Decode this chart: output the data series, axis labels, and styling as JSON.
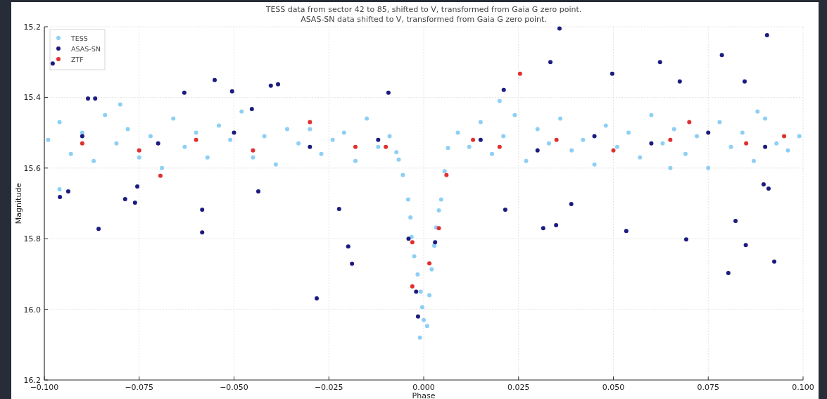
{
  "chart_data": {
    "type": "scatter",
    "title": "TESS data from sector 42 to 85, shifted to V, transformed from Gaia G zero point.",
    "subtitle": "ASAS-SN data shifted to V, transformed from Gaia G zero point.",
    "xlabel": "Phase",
    "ylabel": "Magnitude",
    "xlim": [
      -0.1,
      0.1
    ],
    "ylim": [
      16.2,
      15.2
    ],
    "xticks": [
      {
        "value": -0.1,
        "label": "−0.100"
      },
      {
        "value": -0.075,
        "label": "−0.075"
      },
      {
        "value": -0.05,
        "label": "−0.050"
      },
      {
        "value": -0.025,
        "label": "−0.025"
      },
      {
        "value": 0,
        "label": "0.000"
      },
      {
        "value": 0.025,
        "label": "0.025"
      },
      {
        "value": 0.05,
        "label": "0.050"
      },
      {
        "value": 0.075,
        "label": "0.075"
      },
      {
        "value": 0.1,
        "label": "0.100"
      }
    ],
    "yticks": [
      {
        "value": 15.2,
        "label": "15.2"
      },
      {
        "value": 15.4,
        "label": "15.4"
      },
      {
        "value": 15.6,
        "label": "15.6"
      },
      {
        "value": 15.8,
        "label": "15.8"
      },
      {
        "value": 16.0,
        "label": "16.0"
      },
      {
        "value": 16.2,
        "label": "16.2"
      }
    ],
    "grid": true,
    "legend": "top left",
    "marker": "circle",
    "series": [
      {
        "name": "TESS",
        "color": "#8ecff5",
        "x": [
          -0.099,
          -0.096,
          -0.093,
          -0.09,
          -0.087,
          -0.084,
          -0.081,
          -0.078,
          -0.075,
          -0.072,
          -0.069,
          -0.066,
          -0.063,
          -0.06,
          -0.057,
          -0.054,
          -0.051,
          -0.048,
          -0.045,
          -0.042,
          -0.039,
          -0.036,
          -0.033,
          -0.03,
          -0.027,
          -0.024,
          -0.021,
          -0.018,
          -0.015,
          -0.012,
          -0.009,
          -0.0072,
          -0.0066,
          -0.0055,
          -0.0041,
          -0.0035,
          -0.0032,
          -0.0025,
          -0.0016,
          -0.0008,
          -0.0004,
          -0.001,
          0.0,
          0.0009,
          0.0015,
          0.0021,
          0.0028,
          0.0033,
          0.004,
          0.0046,
          0.0055,
          0.0064,
          0.009,
          0.012,
          0.015,
          0.018,
          0.021,
          0.024,
          0.027,
          0.03,
          0.033,
          0.036,
          0.039,
          0.042,
          0.045,
          0.048,
          0.051,
          0.054,
          0.057,
          0.06,
          0.063,
          0.066,
          0.069,
          0.072,
          0.075,
          0.078,
          0.081,
          0.084,
          0.087,
          0.09,
          0.093,
          0.096,
          0.099,
          -0.096,
          -0.08,
          0.065,
          0.088,
          0.02
        ],
        "values": [
          15.52,
          15.47,
          15.56,
          15.5,
          15.58,
          15.45,
          15.53,
          15.49,
          15.57,
          15.51,
          15.6,
          15.46,
          15.54,
          15.5,
          15.57,
          15.48,
          15.52,
          15.44,
          15.57,
          15.51,
          15.59,
          15.49,
          15.53,
          15.49,
          15.56,
          15.52,
          15.5,
          15.58,
          15.46,
          15.54,
          15.51,
          15.555,
          15.576,
          15.62,
          15.689,
          15.74,
          15.795,
          15.85,
          15.901,
          15.95,
          15.994,
          16.08,
          16.03,
          16.047,
          15.96,
          15.887,
          15.82,
          15.768,
          15.72,
          15.689,
          15.609,
          15.543,
          15.5,
          15.54,
          15.47,
          15.56,
          15.51,
          15.45,
          15.58,
          15.49,
          15.53,
          15.46,
          15.55,
          15.52,
          15.59,
          15.48,
          15.54,
          15.5,
          15.57,
          15.45,
          15.53,
          15.49,
          15.56,
          15.51,
          15.6,
          15.47,
          15.54,
          15.5,
          15.58,
          15.46,
          15.53,
          15.55,
          15.51,
          15.66,
          15.42,
          15.6,
          15.44,
          15.41
        ]
      },
      {
        "name": "ASAS-SN",
        "color": "#1c1c80",
        "x": [
          -0.0978,
          -0.0959,
          -0.0937,
          -0.0857,
          -0.0885,
          -0.0866,
          -0.0787,
          -0.0761,
          -0.0755,
          -0.0631,
          -0.0584,
          -0.0584,
          -0.0551,
          -0.0505,
          -0.0453,
          -0.0403,
          -0.0384,
          -0.0436,
          -0.0282,
          -0.0223,
          -0.0199,
          -0.0189,
          -0.0093,
          0.0211,
          0.0215,
          0.0334,
          0.0358,
          0.0315,
          0.0349,
          0.0389,
          0.0497,
          0.0534,
          0.0623,
          0.0675,
          0.0692,
          0.0786,
          0.0803,
          0.0822,
          0.0849,
          0.0846,
          0.0905,
          0.0924,
          0.0896,
          0.0909,
          -0.09,
          -0.07,
          -0.05,
          -0.03,
          -0.012,
          0.015,
          0.03,
          0.045,
          0.06,
          0.075,
          0.09,
          -0.004,
          -0.002,
          0.003,
          -0.0015
        ],
        "values": [
          15.304,
          15.682,
          15.666,
          15.772,
          15.403,
          15.403,
          15.688,
          15.698,
          15.652,
          15.387,
          15.782,
          15.718,
          15.351,
          15.383,
          15.433,
          15.367,
          15.363,
          15.666,
          15.969,
          15.716,
          15.822,
          15.871,
          15.387,
          15.379,
          15.718,
          15.3,
          15.205,
          15.77,
          15.762,
          15.702,
          15.333,
          15.778,
          15.3,
          15.355,
          15.802,
          15.28,
          15.897,
          15.75,
          15.818,
          15.355,
          15.224,
          15.865,
          15.646,
          15.658,
          15.51,
          15.53,
          15.5,
          15.54,
          15.52,
          15.52,
          15.55,
          15.51,
          15.53,
          15.5,
          15.54,
          15.8,
          15.95,
          15.81,
          16.02
        ]
      },
      {
        "name": "ZTF",
        "color": "#e03030",
        "x": [
          0.0254,
          -0.0694,
          -0.09,
          -0.075,
          -0.06,
          -0.045,
          -0.03,
          -0.018,
          -0.01,
          -0.003,
          0.004,
          0.006,
          0.013,
          0.02,
          0.035,
          0.05,
          0.065,
          0.07,
          0.085,
          0.095,
          0.0015,
          -0.003
        ],
        "values": [
          15.333,
          15.622,
          15.53,
          15.55,
          15.52,
          15.55,
          15.47,
          15.54,
          15.54,
          15.81,
          15.77,
          15.62,
          15.52,
          15.54,
          15.52,
          15.55,
          15.52,
          15.47,
          15.53,
          15.51,
          15.87,
          15.935
        ]
      }
    ]
  }
}
